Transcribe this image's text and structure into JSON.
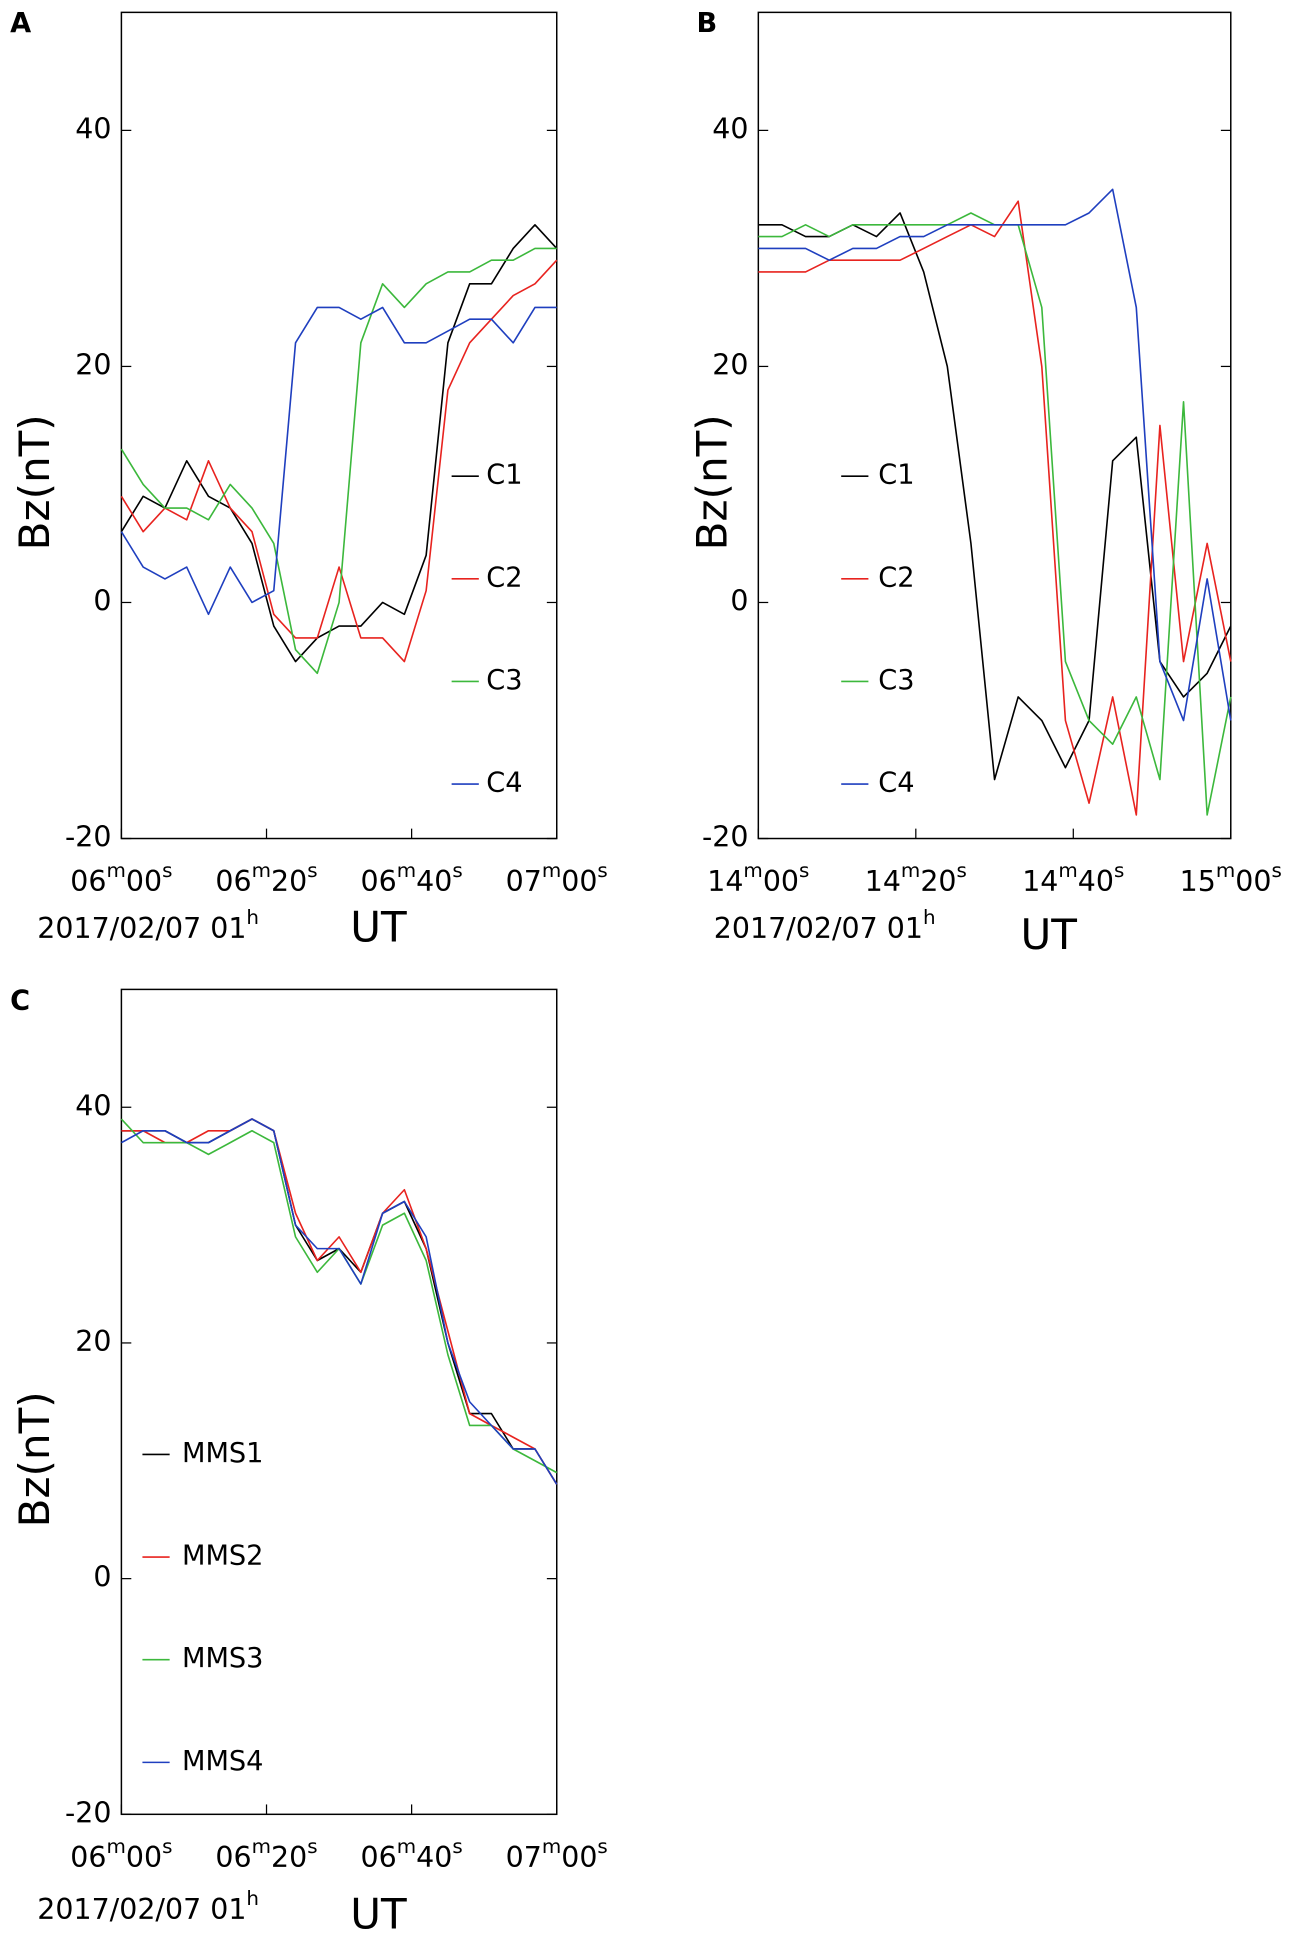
{
  "chart_data": [
    {
      "type": "line",
      "panel_label": "A",
      "y_label": "Bz(nT)",
      "date_label": "2017/02/07 01h",
      "x_label": "UT",
      "xlim": [
        0,
        60
      ],
      "ylim": [
        -20,
        50
      ],
      "xticks": [
        {
          "value": 0,
          "label": "06m00s"
        },
        {
          "value": 20,
          "label": "06m20s"
        },
        {
          "value": 40,
          "label": "06m40s"
        },
        {
          "value": 60,
          "label": "07m00s"
        }
      ],
      "yticks": [
        -20,
        0,
        20,
        40
      ],
      "x": [
        0,
        3,
        6,
        9,
        12,
        15,
        18,
        21,
        24,
        27,
        30,
        33,
        36,
        39,
        42,
        45,
        48,
        51,
        54,
        57,
        60
      ],
      "series": [
        {
          "name": "C1",
          "color": "#000000",
          "values": [
            6,
            9,
            8,
            12,
            9,
            8,
            5,
            -2,
            -5,
            -3,
            -2,
            -2,
            0,
            -1,
            4,
            22,
            27,
            27,
            30,
            32,
            30
          ]
        },
        {
          "name": "C2",
          "color": "#e8231f",
          "values": [
            9,
            6,
            8,
            7,
            12,
            8,
            6,
            -1,
            -3,
            -3,
            3,
            -3,
            -3,
            -5,
            1,
            18,
            22,
            24,
            26,
            27,
            29
          ]
        },
        {
          "name": "C3",
          "color": "#3cb83c",
          "values": [
            13,
            10,
            8,
            8,
            7,
            10,
            8,
            5,
            -4,
            -6,
            0,
            22,
            27,
            25,
            27,
            28,
            28,
            29,
            29,
            30,
            30
          ]
        },
        {
          "name": "C4",
          "color": "#1f3fbf",
          "values": [
            6,
            3,
            2,
            3,
            -1,
            3,
            0,
            1,
            22,
            25,
            25,
            24,
            25,
            22,
            22,
            23,
            24,
            24,
            22,
            25,
            25
          ]
        }
      ]
    },
    {
      "type": "line",
      "panel_label": "B",
      "y_label": "Bz(nT)",
      "date_label": "2017/02/07 01h",
      "x_label": "UT",
      "xlim": [
        0,
        60
      ],
      "ylim": [
        -20,
        50
      ],
      "xticks": [
        {
          "value": 0,
          "label": "14m00s"
        },
        {
          "value": 20,
          "label": "14m20s"
        },
        {
          "value": 40,
          "label": "14m40s"
        },
        {
          "value": 60,
          "label": "15m00s"
        }
      ],
      "yticks": [
        -20,
        0,
        20,
        40
      ],
      "x": [
        0,
        3,
        6,
        9,
        12,
        15,
        18,
        21,
        24,
        27,
        30,
        33,
        36,
        39,
        42,
        45,
        48,
        51,
        54,
        57,
        60
      ],
      "series": [
        {
          "name": "C1",
          "color": "#000000",
          "values": [
            32,
            32,
            31,
            31,
            32,
            31,
            33,
            28,
            20,
            5,
            -15,
            -8,
            -10,
            -14,
            -10,
            12,
            14,
            -5,
            -8,
            -6,
            -2
          ]
        },
        {
          "name": "C2",
          "color": "#e8231f",
          "values": [
            28,
            28,
            28,
            29,
            29,
            29,
            29,
            30,
            31,
            32,
            31,
            34,
            20,
            -10,
            -17,
            -8,
            -18,
            15,
            -5,
            5,
            -5
          ]
        },
        {
          "name": "C3",
          "color": "#3cb83c",
          "values": [
            31,
            31,
            32,
            31,
            32,
            32,
            32,
            32,
            32,
            33,
            32,
            32,
            25,
            -5,
            -10,
            -12,
            -8,
            -15,
            17,
            -18,
            -8
          ]
        },
        {
          "name": "C4",
          "color": "#1f3fbf",
          "values": [
            30,
            30,
            30,
            29,
            30,
            30,
            31,
            31,
            32,
            32,
            32,
            32,
            32,
            32,
            33,
            35,
            25,
            -5,
            -10,
            2,
            -10
          ]
        }
      ]
    },
    {
      "type": "line",
      "panel_label": "C",
      "y_label": "Bz(nT)",
      "date_label": "2017/02/07 01h",
      "x_label": "UT",
      "xlim": [
        0,
        60
      ],
      "ylim": [
        -20,
        50
      ],
      "xticks": [
        {
          "value": 0,
          "label": "06m00s"
        },
        {
          "value": 20,
          "label": "06m20s"
        },
        {
          "value": 40,
          "label": "06m40s"
        },
        {
          "value": 60,
          "label": "07m00s"
        }
      ],
      "yticks": [
        -20,
        0,
        20,
        40
      ],
      "x": [
        0,
        3,
        6,
        9,
        12,
        15,
        18,
        21,
        24,
        27,
        30,
        33,
        36,
        39,
        42,
        45,
        48,
        51,
        54,
        57,
        60
      ],
      "series": [
        {
          "name": "MMS1",
          "color": "#000000",
          "values": [
            38,
            38,
            38,
            37,
            37,
            38,
            39,
            38,
            30,
            27,
            28,
            26,
            31,
            32,
            28,
            20,
            14,
            14,
            11,
            11,
            8
          ]
        },
        {
          "name": "MMS2",
          "color": "#e8231f",
          "values": [
            38,
            38,
            37,
            37,
            38,
            38,
            39,
            38,
            31,
            27,
            29,
            26,
            31,
            33,
            28,
            21,
            14,
            13,
            12,
            11,
            8
          ]
        },
        {
          "name": "MMS3",
          "color": "#3cb83c",
          "values": [
            39,
            37,
            37,
            37,
            36,
            37,
            38,
            37,
            29,
            26,
            28,
            25,
            30,
            31,
            27,
            19,
            13,
            13,
            11,
            10,
            9
          ]
        },
        {
          "name": "MMS4",
          "color": "#1f3fbf",
          "values": [
            37,
            38,
            38,
            37,
            37,
            38,
            39,
            38,
            30,
            28,
            28,
            25,
            31,
            32,
            29,
            20,
            15,
            13,
            11,
            11,
            8
          ]
        }
      ]
    }
  ]
}
